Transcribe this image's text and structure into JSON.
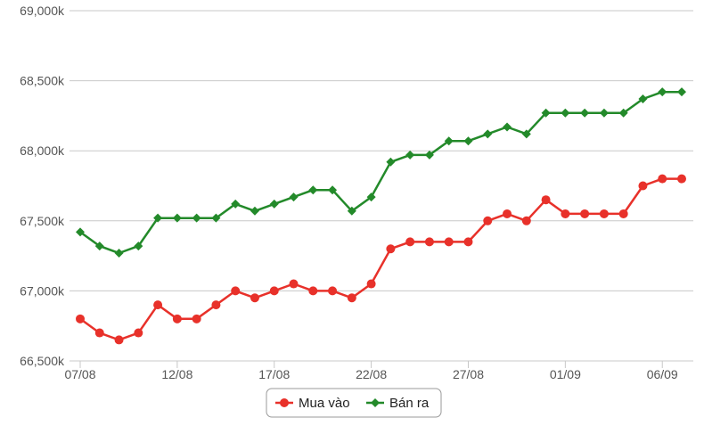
{
  "chart_data": {
    "type": "line",
    "title": "",
    "xlabel": "",
    "ylabel": "",
    "ylim": [
      66500,
      69000
    ],
    "y_ticks": [
      66500,
      67000,
      67500,
      68000,
      68500,
      69000
    ],
    "y_tick_labels": [
      "66,500k",
      "67,000k",
      "67,500k",
      "68,000k",
      "68,500k",
      "69,000k"
    ],
    "x_tick_labels": [
      {
        "index": 0,
        "label": "07/08"
      },
      {
        "index": 5,
        "label": "12/08"
      },
      {
        "index": 10,
        "label": "17/08"
      },
      {
        "index": 15,
        "label": "22/08"
      },
      {
        "index": 20,
        "label": "27/08"
      },
      {
        "index": 25,
        "label": "01/09"
      },
      {
        "index": 30,
        "label": "06/09"
      }
    ],
    "grid": true,
    "legend_position": "bottom-center",
    "x_count": 32,
    "series": [
      {
        "name": "Mua vào",
        "color": "#e8312a",
        "marker": "circle",
        "values": [
          66800,
          66700,
          66650,
          66700,
          66900,
          66800,
          66800,
          66900,
          67000,
          66950,
          67000,
          67050,
          67000,
          67000,
          66950,
          67050,
          67300,
          67350,
          67350,
          67350,
          67350,
          67500,
          67550,
          67500,
          67650,
          67550,
          67550,
          67550,
          67550,
          67750,
          67800,
          67800
        ]
      },
      {
        "name": "Bán ra",
        "color": "#238a2a",
        "marker": "diamond",
        "values": [
          67420,
          67320,
          67270,
          67320,
          67520,
          67520,
          67520,
          67520,
          67620,
          67570,
          67620,
          67670,
          67720,
          67720,
          67570,
          67670,
          67920,
          67970,
          67970,
          68070,
          68070,
          68120,
          68170,
          68120,
          68270,
          68270,
          68270,
          68270,
          68270,
          68370,
          68420,
          68420
        ]
      }
    ]
  }
}
